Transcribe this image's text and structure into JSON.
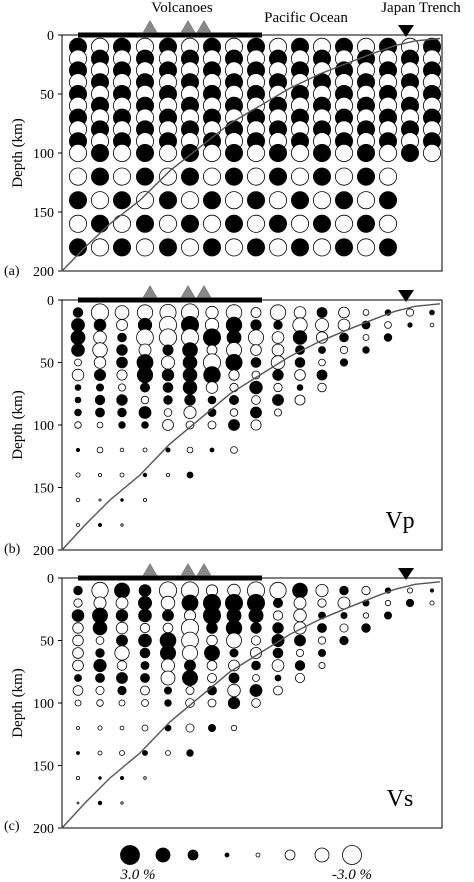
{
  "figure": {
    "top_labels": {
      "volcanoes": "Volcanoes",
      "pacific_ocean": "Pacific Ocean",
      "japan_trench": "Japan Trench"
    },
    "legend": {
      "left_label": "3.0 %",
      "right_label": "-3.0 %",
      "values_percent": [
        -3.0,
        -2.0,
        -1.0,
        -0.25,
        0.25,
        1.0,
        2.0,
        3.0
      ]
    },
    "colors": {
      "fast_anomaly": "#000000",
      "slow_anomaly": "#ffffff",
      "slab_line": "#555555"
    }
  },
  "chart_data": [
    {
      "type": "scatter",
      "panel_label": "(a)",
      "panel_title": "",
      "ylabel": "Depth (km)",
      "ylim": [
        200,
        0
      ],
      "yticks": [
        "0",
        "50",
        "100",
        "150",
        "200"
      ],
      "pattern": "checkerboard",
      "depth_km": [
        0,
        10,
        20,
        30,
        40,
        50,
        60,
        70,
        80,
        90,
        100,
        120,
        140,
        160,
        180,
        200
      ],
      "slab_depth_km": [
        200,
        180,
        160,
        140,
        115,
        95,
        75,
        60,
        45,
        33,
        23,
        15,
        9,
        5,
        3
      ]
    },
    {
      "type": "scatter",
      "panel_label": "(b)",
      "panel_title": "Vp",
      "ylabel": "Depth (km)",
      "ylim": [
        200,
        0
      ],
      "yticks": [
        "0",
        "50",
        "100",
        "150",
        "200"
      ],
      "pattern": "recovered",
      "depth_km": [
        0,
        10,
        20,
        30,
        40,
        50,
        60,
        70,
        80,
        90,
        100,
        120,
        140,
        160,
        180,
        200
      ],
      "slab_depth_km": [
        200,
        180,
        160,
        140,
        115,
        95,
        75,
        60,
        45,
        33,
        23,
        15,
        9,
        5,
        3
      ]
    },
    {
      "type": "scatter",
      "panel_label": "(c)",
      "panel_title": "Vs",
      "ylabel": "Depth (km)",
      "ylim": [
        200,
        0
      ],
      "yticks": [
        "0",
        "50",
        "100",
        "150",
        "200"
      ],
      "pattern": "recovered",
      "depth_km": [
        0,
        10,
        20,
        30,
        40,
        50,
        60,
        70,
        80,
        90,
        100,
        120,
        140,
        160,
        180,
        200
      ],
      "slab_depth_km": [
        200,
        180,
        160,
        140,
        115,
        95,
        75,
        60,
        45,
        33,
        23,
        15,
        9,
        5,
        3
      ]
    }
  ]
}
